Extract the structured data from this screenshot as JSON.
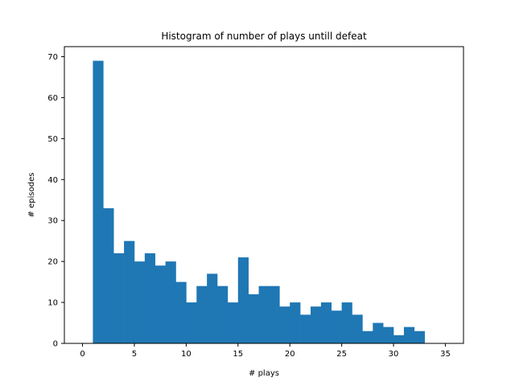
{
  "chart_data": {
    "type": "bar",
    "title": "Histogram of number of plays untill defeat",
    "xlabel": "# plays",
    "ylabel": "# episodes",
    "bin_width": 1,
    "bins": [
      {
        "x0": 1,
        "x1": 2,
        "value": 69
      },
      {
        "x0": 2,
        "x1": 3,
        "value": 33
      },
      {
        "x0": 3,
        "x1": 4,
        "value": 22
      },
      {
        "x0": 4,
        "x1": 5,
        "value": 25
      },
      {
        "x0": 5,
        "x1": 6,
        "value": 20
      },
      {
        "x0": 6,
        "x1": 7,
        "value": 22
      },
      {
        "x0": 7,
        "x1": 8,
        "value": 19
      },
      {
        "x0": 8,
        "x1": 9,
        "value": 20
      },
      {
        "x0": 9,
        "x1": 10,
        "value": 15
      },
      {
        "x0": 10,
        "x1": 11,
        "value": 10
      },
      {
        "x0": 11,
        "x1": 12,
        "value": 14
      },
      {
        "x0": 12,
        "x1": 13,
        "value": 17
      },
      {
        "x0": 13,
        "x1": 14,
        "value": 14
      },
      {
        "x0": 14,
        "x1": 15,
        "value": 10
      },
      {
        "x0": 15,
        "x1": 16,
        "value": 21
      },
      {
        "x0": 16,
        "x1": 17,
        "value": 12
      },
      {
        "x0": 17,
        "x1": 18,
        "value": 14
      },
      {
        "x0": 18,
        "x1": 19,
        "value": 14
      },
      {
        "x0": 19,
        "x1": 20,
        "value": 9
      },
      {
        "x0": 20,
        "x1": 21,
        "value": 10
      },
      {
        "x0": 21,
        "x1": 22,
        "value": 7
      },
      {
        "x0": 22,
        "x1": 23,
        "value": 9
      },
      {
        "x0": 23,
        "x1": 24,
        "value": 10
      },
      {
        "x0": 24,
        "x1": 25,
        "value": 8
      },
      {
        "x0": 25,
        "x1": 26,
        "value": 10
      },
      {
        "x0": 26,
        "x1": 27,
        "value": 7
      },
      {
        "x0": 27,
        "x1": 28,
        "value": 3
      },
      {
        "x0": 28,
        "x1": 29,
        "value": 5
      },
      {
        "x0": 29,
        "x1": 30,
        "value": 4
      },
      {
        "x0": 30,
        "x1": 31,
        "value": 2
      },
      {
        "x0": 31,
        "x1": 32,
        "value": 4
      },
      {
        "x0": 32,
        "x1": 33,
        "value": 3
      }
    ],
    "xlim": [
      -1.75,
      36.75
    ],
    "ylim": [
      0,
      72.45
    ],
    "xticks": [
      0,
      5,
      10,
      15,
      20,
      25,
      30,
      35
    ],
    "yticks": [
      0,
      10,
      20,
      30,
      40,
      50,
      60,
      70
    ],
    "grid": false,
    "legend": "none",
    "bar_color": "#1f77b4"
  }
}
